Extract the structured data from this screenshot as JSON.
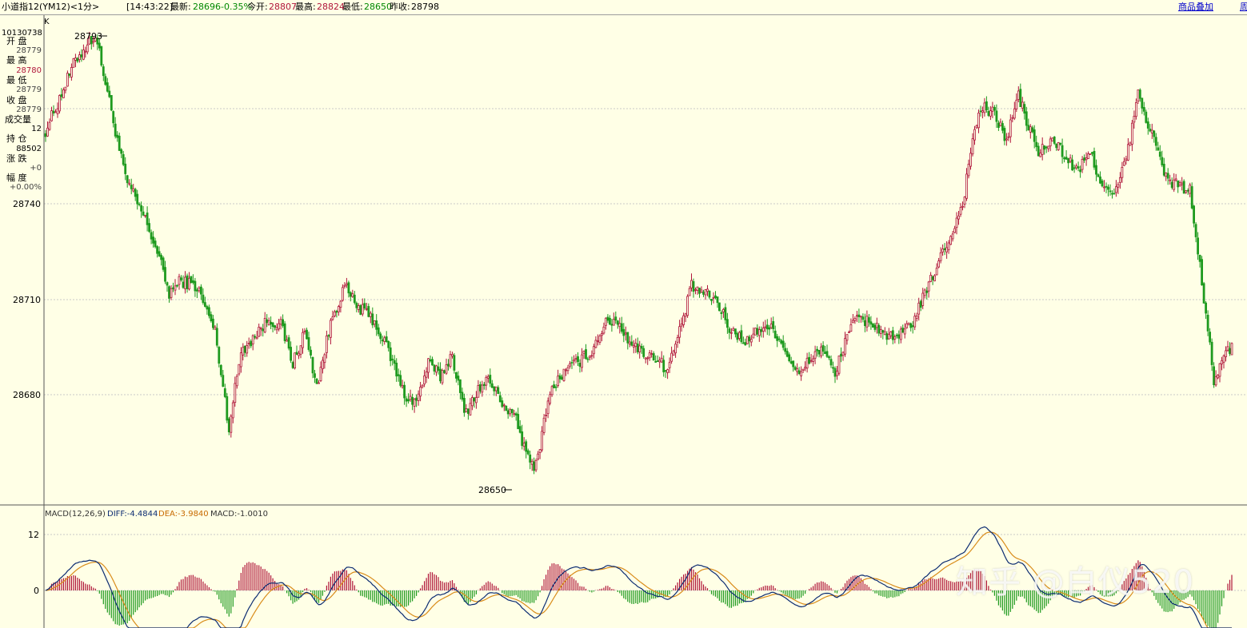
{
  "header": {
    "instrument": "小道指12(YM12)<1分>",
    "time": "[14:43:22]",
    "latest_label": "最新:",
    "latest_value": "28696",
    "change": "-0.35%",
    "open_label": "今开:",
    "open_value": "28807",
    "high_label": "最高:",
    "high_value": "28824",
    "low_label": "最低:",
    "low_value": "28650",
    "prev_close_label": "昨收:",
    "prev_close_value": "28798",
    "overlay_link": "商品叠加",
    "overlay_link2": "周"
  },
  "info_panel": {
    "k_label": "K",
    "date": "10130738",
    "open_label": "开 盘",
    "open_value": "28779",
    "high_label": "最 高",
    "high_value": "28780",
    "low_label": "最 低",
    "low_value": "28779",
    "close_label": "收 盘",
    "close_value": "28779",
    "volume_label": "成交量",
    "volume_value": "12",
    "oi_label": "持 仓",
    "oi_value": "88502",
    "chg_label": "涨 跌",
    "chg_value": "+0",
    "amp_label": "幅 度",
    "amp_value": "+0.00%"
  },
  "colors": {
    "background": "#ffffe6",
    "up": "#b0163a",
    "down": "#1e9a1e",
    "grid": "#c8c8c8",
    "diff_line": "#0c2c72",
    "dea_line": "#d98c1a",
    "blue_text": "#0c2c72",
    "orange_text": "#c86a00",
    "red_text": "#b0163a",
    "green_text": "#008800"
  },
  "chart_data": {
    "type": "candlestick",
    "y_ticks": [
      "28740",
      "28710",
      "28680"
    ],
    "ylim": [
      28636,
      28800
    ],
    "grid": true,
    "annotations": {
      "high_label": "28793",
      "low_label": "28650"
    },
    "keypoints": [
      [
        0,
        28763
      ],
      [
        5,
        28770
      ],
      [
        15,
        28785
      ],
      [
        25,
        28793
      ],
      [
        32,
        28772
      ],
      [
        40,
        28748
      ],
      [
        50,
        28735
      ],
      [
        56,
        28725
      ],
      [
        62,
        28712
      ],
      [
        68,
        28716
      ],
      [
        76,
        28714
      ],
      [
        85,
        28700
      ],
      [
        92,
        28670
      ],
      [
        98,
        28694
      ],
      [
        104,
        28698
      ],
      [
        112,
        28704
      ],
      [
        118,
        28702
      ],
      [
        124,
        28690
      ],
      [
        130,
        28700
      ],
      [
        136,
        28683
      ],
      [
        144,
        28705
      ],
      [
        150,
        28714
      ],
      [
        156,
        28708
      ],
      [
        164,
        28704
      ],
      [
        172,
        28694
      ],
      [
        180,
        28680
      ],
      [
        186,
        28678
      ],
      [
        192,
        28690
      ],
      [
        198,
        28686
      ],
      [
        204,
        28693
      ],
      [
        210,
        28674
      ],
      [
        216,
        28681
      ],
      [
        222,
        28685
      ],
      [
        230,
        28677
      ],
      [
        236,
        28672
      ],
      [
        242,
        28660
      ],
      [
        246,
        28658
      ],
      [
        252,
        28679
      ],
      [
        258,
        28686
      ],
      [
        266,
        28690
      ],
      [
        274,
        28694
      ],
      [
        280,
        28702
      ],
      [
        286,
        28704
      ],
      [
        292,
        28698
      ],
      [
        298,
        28694
      ],
      [
        306,
        28692
      ],
      [
        312,
        28688
      ],
      [
        318,
        28700
      ],
      [
        324,
        28714
      ],
      [
        330,
        28712
      ],
      [
        336,
        28710
      ],
      [
        344,
        28700
      ],
      [
        352,
        28697
      ],
      [
        360,
        28702
      ],
      [
        366,
        28700
      ],
      [
        372,
        28693
      ],
      [
        378,
        28686
      ],
      [
        384,
        28692
      ],
      [
        390,
        28695
      ],
      [
        396,
        28686
      ],
      [
        402,
        28700
      ],
      [
        408,
        28704
      ],
      [
        414,
        28703
      ],
      [
        420,
        28700
      ],
      [
        426,
        28697
      ],
      [
        434,
        28702
      ],
      [
        440,
        28710
      ],
      [
        448,
        28722
      ],
      [
        454,
        28730
      ],
      [
        460,
        28740
      ],
      [
        466,
        28764
      ],
      [
        470,
        28770
      ],
      [
        476,
        28768
      ],
      [
        482,
        28760
      ],
      [
        488,
        28774
      ],
      [
        492,
        28766
      ],
      [
        498,
        28756
      ],
      [
        506,
        28760
      ],
      [
        512,
        28754
      ],
      [
        518,
        28750
      ],
      [
        524,
        28756
      ],
      [
        530,
        28746
      ],
      [
        536,
        28742
      ],
      [
        542,
        28754
      ],
      [
        548,
        28774
      ],
      [
        556,
        28760
      ],
      [
        562,
        28748
      ],
      [
        568,
        28746
      ],
      [
        574,
        28744
      ],
      [
        578,
        28725
      ],
      [
        582,
        28705
      ],
      [
        586,
        28685
      ],
      [
        590,
        28690
      ],
      [
        595,
        28696
      ]
    ],
    "seed": 1234
  },
  "macd": {
    "label": "MACD(12,26,9)",
    "diff_label": "DIFF:-4.4844",
    "dea_label": "DEA:-3.9840",
    "macd_label": "MACD:-1.0010",
    "y_ticks": [
      "12",
      "0"
    ],
    "params": [
      12,
      26,
      9
    ]
  },
  "watermark": "知乎 @白仪520"
}
